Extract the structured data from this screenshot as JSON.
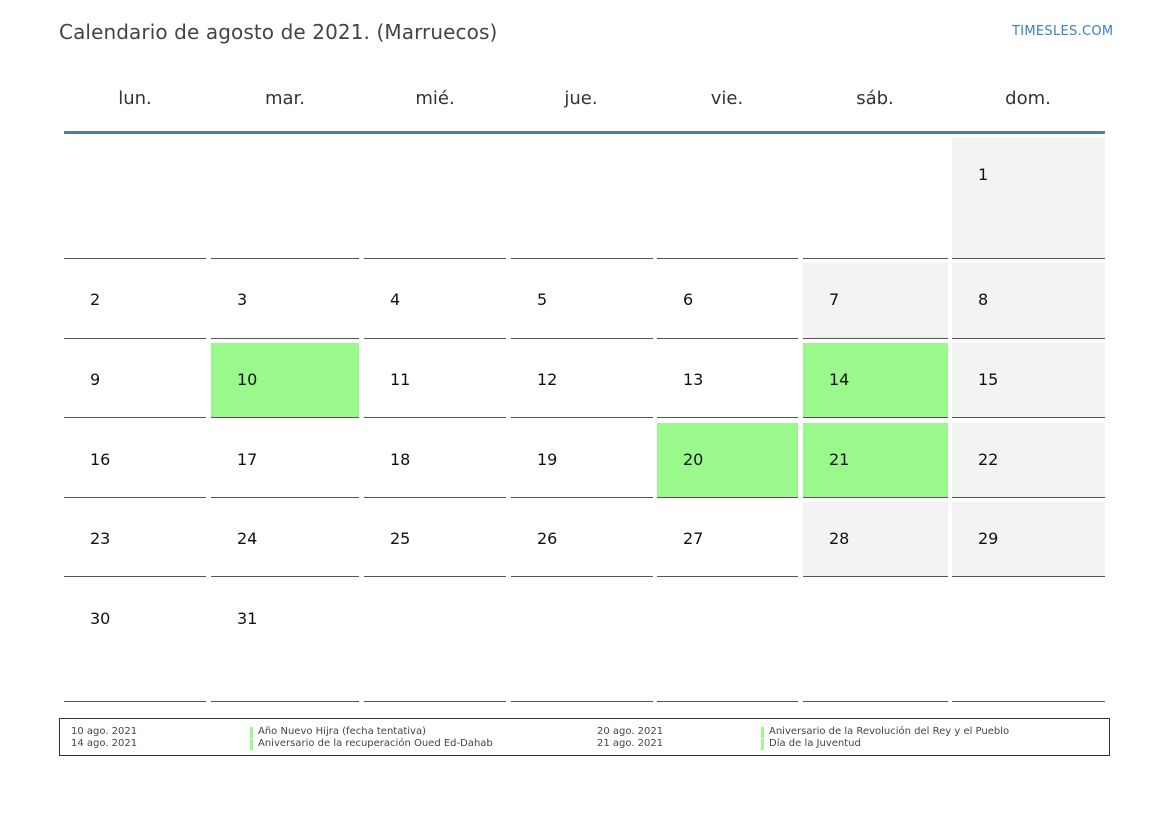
{
  "header": {
    "title": "Calendario de agosto de 2021. (Marruecos)",
    "brand": "TIMESLES.COM"
  },
  "weekdays": [
    "lun.",
    "mar.",
    "mié.",
    "jue.",
    "vie.",
    "sáb.",
    "dom."
  ],
  "colors": {
    "holiday": "#99f98a",
    "weekend": "#f3f3f3",
    "rule": "#5b7aa0",
    "brand": "#3b7fc4"
  },
  "days": [
    {
      "n": "1",
      "col": 6,
      "row": 0,
      "type": "weekend"
    },
    {
      "n": "2",
      "col": 0,
      "row": 1,
      "type": "normal"
    },
    {
      "n": "3",
      "col": 1,
      "row": 1,
      "type": "normal"
    },
    {
      "n": "4",
      "col": 2,
      "row": 1,
      "type": "normal"
    },
    {
      "n": "5",
      "col": 3,
      "row": 1,
      "type": "normal"
    },
    {
      "n": "6",
      "col": 4,
      "row": 1,
      "type": "normal"
    },
    {
      "n": "7",
      "col": 5,
      "row": 1,
      "type": "weekend"
    },
    {
      "n": "8",
      "col": 6,
      "row": 1,
      "type": "weekend"
    },
    {
      "n": "9",
      "col": 0,
      "row": 2,
      "type": "normal"
    },
    {
      "n": "10",
      "col": 1,
      "row": 2,
      "type": "holiday"
    },
    {
      "n": "11",
      "col": 2,
      "row": 2,
      "type": "normal"
    },
    {
      "n": "12",
      "col": 3,
      "row": 2,
      "type": "normal"
    },
    {
      "n": "13",
      "col": 4,
      "row": 2,
      "type": "normal"
    },
    {
      "n": "14",
      "col": 5,
      "row": 2,
      "type": "holiday"
    },
    {
      "n": "15",
      "col": 6,
      "row": 2,
      "type": "weekend"
    },
    {
      "n": "16",
      "col": 0,
      "row": 3,
      "type": "normal"
    },
    {
      "n": "17",
      "col": 1,
      "row": 3,
      "type": "normal"
    },
    {
      "n": "18",
      "col": 2,
      "row": 3,
      "type": "normal"
    },
    {
      "n": "19",
      "col": 3,
      "row": 3,
      "type": "normal"
    },
    {
      "n": "20",
      "col": 4,
      "row": 3,
      "type": "holiday"
    },
    {
      "n": "21",
      "col": 5,
      "row": 3,
      "type": "holiday"
    },
    {
      "n": "22",
      "col": 6,
      "row": 3,
      "type": "weekend"
    },
    {
      "n": "23",
      "col": 0,
      "row": 4,
      "type": "normal"
    },
    {
      "n": "24",
      "col": 1,
      "row": 4,
      "type": "normal"
    },
    {
      "n": "25",
      "col": 2,
      "row": 4,
      "type": "normal"
    },
    {
      "n": "26",
      "col": 3,
      "row": 4,
      "type": "normal"
    },
    {
      "n": "27",
      "col": 4,
      "row": 4,
      "type": "normal"
    },
    {
      "n": "28",
      "col": 5,
      "row": 4,
      "type": "weekend"
    },
    {
      "n": "29",
      "col": 6,
      "row": 4,
      "type": "weekend"
    },
    {
      "n": "30",
      "col": 0,
      "row": 5,
      "type": "normal"
    },
    {
      "n": "31",
      "col": 1,
      "row": 5,
      "type": "normal"
    }
  ],
  "holidays": [
    {
      "date": "10 ago. 2021",
      "name": "Año Nuevo Hijra (fecha tentativa)"
    },
    {
      "date": "14 ago. 2021",
      "name": "Aniversario de la recuperación Oued Ed-Dahab"
    },
    {
      "date": "20 ago. 2021",
      "name": "Aniversario de la Revolución del Rey y el Pueblo"
    },
    {
      "date": "21 ago. 2021",
      "name": "Día de la Juventud"
    }
  ]
}
